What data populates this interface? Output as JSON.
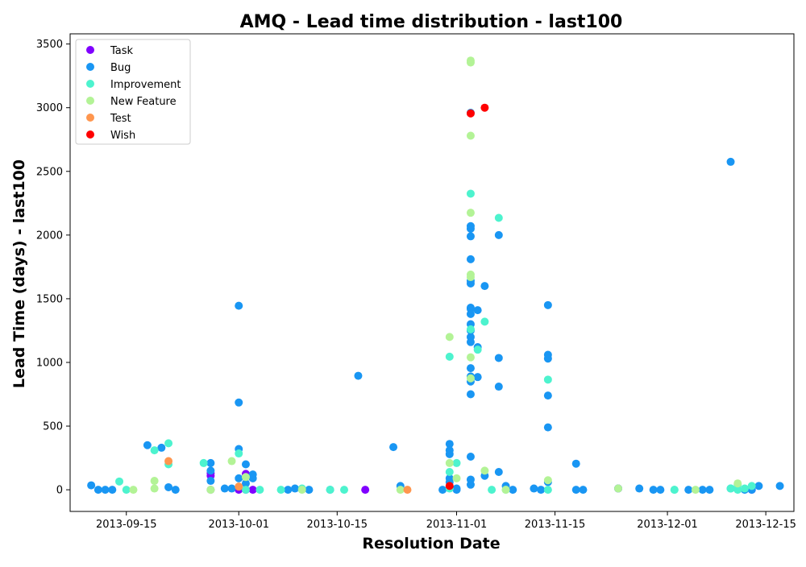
{
  "chart_data": {
    "type": "scatter",
    "title": "AMQ - Lead time distribution - last100",
    "xlabel": "Resolution Date",
    "ylabel": "Lead Time (days) - last100",
    "x_type": "date",
    "xlim": [
      "2013-09-07",
      "2013-12-19"
    ],
    "ylim": [
      -170,
      3580
    ],
    "x_ticks": [
      "2013-09-15",
      "2013-10-01",
      "2013-10-15",
      "2013-11-01",
      "2013-11-15",
      "2013-12-01",
      "2013-12-15"
    ],
    "y_ticks": [
      0,
      500,
      1000,
      1500,
      2000,
      2500,
      3000,
      3500
    ],
    "grid": false,
    "legend": {
      "position": "top-left"
    },
    "series": [
      {
        "name": "Task",
        "color": "#8000ff",
        "x": [
          "2013-09-27",
          "2013-09-27",
          "2013-09-27",
          "2013-10-01",
          "2013-10-02",
          "2013-10-02",
          "2013-10-03",
          "2013-10-19",
          "2013-11-24",
          "2013-12-13"
        ],
        "y": [
          0,
          110,
          130,
          0,
          0,
          125,
          0,
          0,
          10,
          0
        ]
      },
      {
        "name": "Bug",
        "color": "#1996f3",
        "x": [
          "2013-09-10",
          "2013-09-11",
          "2013-09-12",
          "2013-09-13",
          "2013-09-18",
          "2013-09-20",
          "2013-09-21",
          "2013-09-22",
          "2013-09-27",
          "2013-09-27",
          "2013-09-27",
          "2013-09-29",
          "2013-09-30",
          "2013-10-01",
          "2013-10-01",
          "2013-10-01",
          "2013-10-01",
          "2013-10-02",
          "2013-10-02",
          "2013-10-03",
          "2013-10-03",
          "2013-10-08",
          "2013-10-09",
          "2013-10-11",
          "2013-10-14",
          "2013-10-18",
          "2013-10-23",
          "2013-10-24",
          "2013-10-30",
          "2013-10-31",
          "2013-10-31",
          "2013-10-31",
          "2013-10-31",
          "2013-10-31",
          "2013-11-01",
          "2013-11-01",
          "2013-11-03",
          "2013-11-03",
          "2013-11-03",
          "2013-11-03",
          "2013-11-03",
          "2013-11-03",
          "2013-11-03",
          "2013-11-03",
          "2013-11-03",
          "2013-11-03",
          "2013-11-03",
          "2013-11-03",
          "2013-11-03",
          "2013-11-03",
          "2013-11-03",
          "2013-11-03",
          "2013-11-03",
          "2013-11-03",
          "2013-11-03",
          "2013-11-03",
          "2013-11-03",
          "2013-11-04",
          "2013-11-04",
          "2013-11-04",
          "2013-11-05",
          "2013-11-05",
          "2013-11-07",
          "2013-11-07",
          "2013-11-07",
          "2013-11-07",
          "2013-11-08",
          "2013-11-09",
          "2013-11-12",
          "2013-11-13",
          "2013-11-14",
          "2013-11-14",
          "2013-11-14",
          "2013-11-14",
          "2013-11-14",
          "2013-11-14",
          "2013-11-18",
          "2013-11-18",
          "2013-11-19",
          "2013-11-24",
          "2013-11-27",
          "2013-11-29",
          "2013-11-30",
          "2013-12-04",
          "2013-12-06",
          "2013-12-07",
          "2013-12-10",
          "2013-12-10",
          "2013-12-12",
          "2013-12-13",
          "2013-12-14",
          "2013-12-17"
        ],
        "y": [
          35,
          0,
          0,
          0,
          350,
          330,
          20,
          0,
          210,
          150,
          70,
          10,
          10,
          1445,
          685,
          320,
          90,
          200,
          50,
          120,
          90,
          0,
          10,
          0,
          0,
          895,
          335,
          30,
          0,
          360,
          310,
          280,
          90,
          60,
          10,
          0,
          2960,
          2070,
          2050,
          1990,
          1810,
          1640,
          1620,
          1430,
          1420,
          1380,
          1300,
          1250,
          1200,
          1160,
          955,
          890,
          850,
          750,
          260,
          80,
          40,
          1410,
          1120,
          885,
          1600,
          110,
          2000,
          1035,
          810,
          140,
          30,
          0,
          10,
          0,
          1450,
          1060,
          1030,
          740,
          490,
          60,
          205,
          0,
          0,
          10,
          10,
          0,
          0,
          0,
          0,
          0,
          2575,
          10,
          0,
          0,
          30,
          30
        ]
      },
      {
        "name": "Improvement",
        "color": "#4df3ce",
        "x": [
          "2013-09-14",
          "2013-09-15",
          "2013-09-19",
          "2013-09-21",
          "2013-09-21",
          "2013-09-26",
          "2013-10-01",
          "2013-10-02",
          "2013-10-04",
          "2013-10-07",
          "2013-10-10",
          "2013-10-14",
          "2013-10-16",
          "2013-10-31",
          "2013-10-31",
          "2013-10-31",
          "2013-11-01",
          "2013-11-03",
          "2013-11-03",
          "2013-11-04",
          "2013-11-05",
          "2013-11-06",
          "2013-11-07",
          "2013-11-08",
          "2013-11-14",
          "2013-11-14",
          "2013-12-02",
          "2013-12-02",
          "2013-12-10",
          "2013-12-11",
          "2013-12-11",
          "2013-12-12",
          "2013-12-13"
        ],
        "y": [
          65,
          0,
          310,
          365,
          200,
          210,
          285,
          0,
          0,
          0,
          10,
          0,
          0,
          1045,
          140,
          10,
          210,
          2325,
          1260,
          1100,
          1320,
          0,
          2135,
          0,
          865,
          0,
          0,
          0,
          10,
          40,
          0,
          10,
          30
        ]
      },
      {
        "name": "New Feature",
        "color": "#b3f396",
        "x": [
          "2013-09-16",
          "2013-09-19",
          "2013-09-19",
          "2013-09-27",
          "2013-09-27",
          "2013-09-30",
          "2013-10-02",
          "2013-10-10",
          "2013-10-24",
          "2013-10-31",
          "2013-10-31",
          "2013-11-01",
          "2013-11-03",
          "2013-11-03",
          "2013-11-03",
          "2013-11-03",
          "2013-11-03",
          "2013-11-03",
          "2013-11-03",
          "2013-11-03",
          "2013-11-05",
          "2013-11-08",
          "2013-11-14",
          "2013-11-24",
          "2013-12-05",
          "2013-12-11"
        ],
        "y": [
          0,
          70,
          10,
          0,
          0,
          225,
          100,
          0,
          0,
          1200,
          210,
          90,
          3370,
          3355,
          2780,
          2175,
          1690,
          1670,
          1040,
          875,
          150,
          0,
          75,
          10,
          0,
          50
        ]
      },
      {
        "name": "Test",
        "color": "#ff964e",
        "x": [
          "2013-09-21",
          "2013-10-01",
          "2013-10-25"
        ],
        "y": [
          225,
          25,
          0
        ]
      },
      {
        "name": "Wish",
        "color": "#ff0000",
        "x": [
          "2013-10-31",
          "2013-11-03",
          "2013-11-05"
        ],
        "y": [
          30,
          2955,
          3000
        ]
      }
    ]
  }
}
